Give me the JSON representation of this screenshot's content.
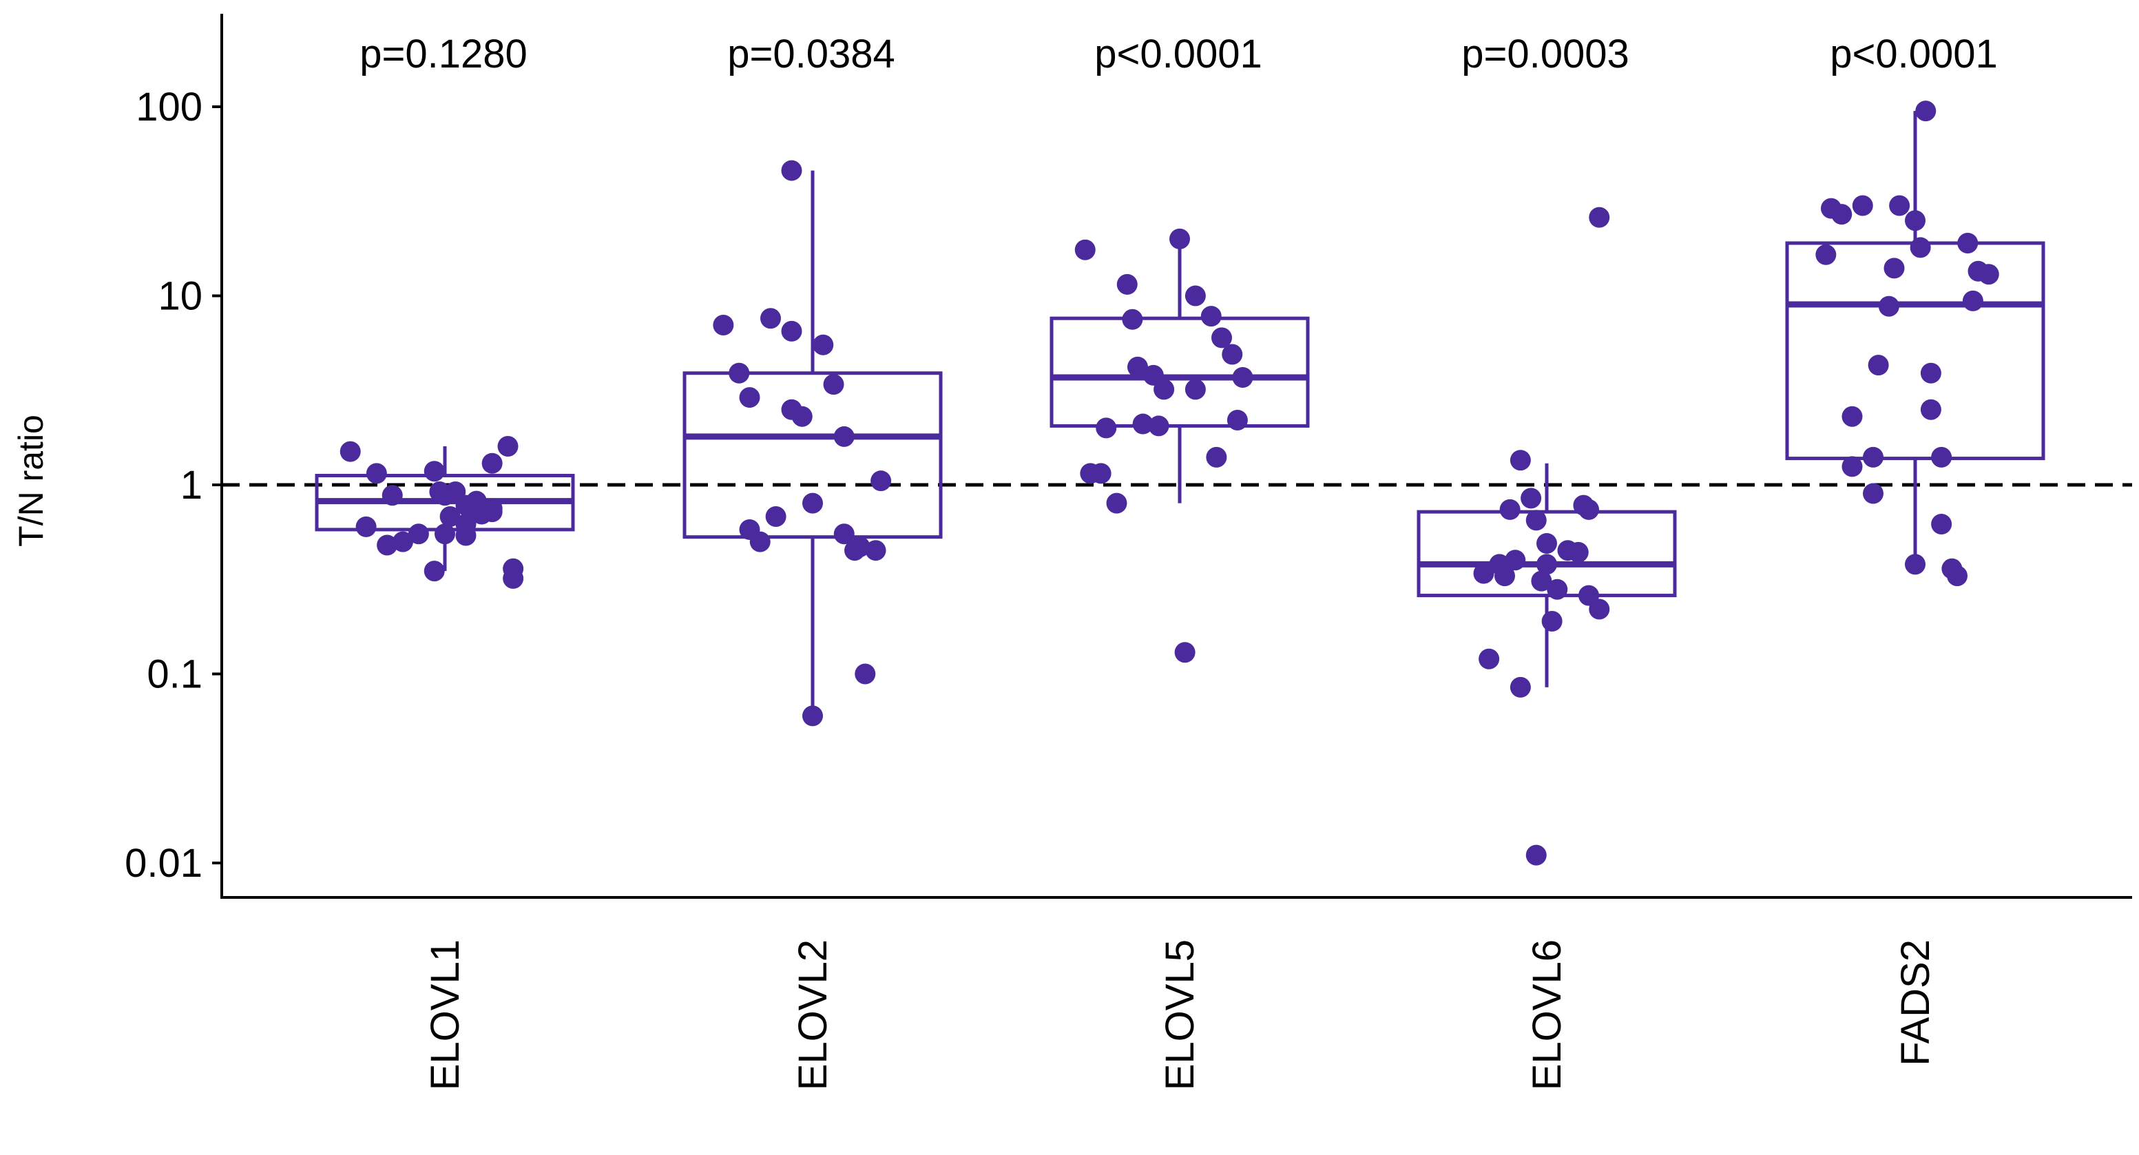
{
  "chart_data": {
    "type": "box",
    "title": "",
    "xlabel": "",
    "ylabel": "T/N ratio",
    "yscale": "log10",
    "ylim": [
      0.008,
      300
    ],
    "yticks": [
      0.01,
      0.1,
      1,
      10,
      100
    ],
    "ytick_labels": [
      "0.01",
      "0.1",
      "1",
      "10",
      "100"
    ],
    "reference_line": 1,
    "grid": false,
    "legend": "none",
    "color": "#4a2a9c",
    "categories": [
      "ELOVL1",
      "ELOVL2",
      "ELOVL5",
      "ELOVL6",
      "FADS2"
    ],
    "p_values": [
      "p=0.1280",
      "p=0.0384",
      "p<0.0001",
      "p=0.0003",
      "p<0.0001"
    ],
    "boxes": [
      {
        "name": "ELOVL1",
        "q1": 0.58,
        "median": 0.82,
        "q3": 1.12,
        "whisker_low": 0.35,
        "whisker_high": 1.6
      },
      {
        "name": "ELOVL2",
        "q1": 0.53,
        "median": 1.8,
        "q3": 3.9,
        "whisker_low": 0.06,
        "whisker_high": 46
      },
      {
        "name": "ELOVL5",
        "q1": 2.05,
        "median": 3.7,
        "q3": 7.6,
        "whisker_low": 0.8,
        "whisker_high": 19
      },
      {
        "name": "ELOVL6",
        "q1": 0.26,
        "median": 0.38,
        "q3": 0.72,
        "whisker_low": 0.085,
        "whisker_high": 1.3
      },
      {
        "name": "FADS2",
        "q1": 1.38,
        "median": 9.0,
        "q3": 19.0,
        "whisker_low": 0.34,
        "whisker_high": 95
      }
    ],
    "points": [
      {
        "name": "ELOVL1",
        "jitter": [
          -0.36,
          -0.26,
          -0.2,
          -0.3,
          -0.1,
          -0.04,
          0.04,
          0.12,
          0.18,
          0.24,
          -0.22,
          -0.04,
          0.1,
          0.18,
          -0.16,
          0.0,
          0.08,
          0.14,
          0.02,
          0.08,
          0.12,
          0.0,
          0.18,
          0.08,
          -0.02,
          0.26,
          0.26
        ],
        "values": [
          1.5,
          1.15,
          0.88,
          0.6,
          0.55,
          0.35,
          0.92,
          0.82,
          1.3,
          1.6,
          0.48,
          1.18,
          0.72,
          0.75,
          0.5,
          0.55,
          0.62,
          0.7,
          0.68,
          0.54,
          0.8,
          0.88,
          0.72,
          0.78,
          0.92,
          0.36,
          0.32
        ]
      },
      {
        "name": "ELOVL2",
        "jitter": [
          -0.34,
          -0.28,
          -0.24,
          -0.24,
          -0.2,
          -0.16,
          -0.08,
          -0.04,
          -0.08,
          0.0,
          0.04,
          0.08,
          0.12,
          0.12,
          0.16,
          0.18,
          0.2,
          0.26,
          0.24,
          0.0,
          -0.14,
          -0.08
        ],
        "values": [
          7.0,
          3.9,
          2.9,
          0.58,
          0.5,
          7.6,
          2.5,
          2.3,
          6.5,
          0.8,
          5.5,
          3.4,
          1.8,
          0.55,
          0.45,
          0.47,
          0.1,
          1.05,
          0.45,
          0.06,
          0.68,
          46
        ]
      },
      {
        "name": "ELOVL5",
        "jitter": [
          -0.36,
          -0.3,
          -0.24,
          -0.2,
          -0.18,
          -0.16,
          -0.14,
          -0.1,
          -0.08,
          -0.06,
          0.0,
          0.06,
          0.06,
          0.12,
          0.14,
          0.16,
          0.2,
          0.22,
          0.24,
          0.02,
          -0.34,
          -0.28
        ],
        "values": [
          17.5,
          1.15,
          0.8,
          11.5,
          7.5,
          4.2,
          2.1,
          3.8,
          2.05,
          3.2,
          20,
          10,
          3.2,
          7.8,
          1.4,
          6.0,
          4.9,
          2.2,
          3.7,
          0.13,
          1.15,
          2.0
        ]
      },
      {
        "name": "ELOVL6",
        "jitter": [
          -0.22,
          -0.24,
          -0.18,
          -0.14,
          -0.12,
          -0.1,
          -0.06,
          -0.04,
          0.0,
          -0.02,
          0.0,
          0.04,
          0.08,
          0.12,
          0.14,
          0.16,
          0.16,
          0.2,
          0.02,
          -0.1,
          -0.04,
          -0.16,
          0.2
        ],
        "values": [
          0.12,
          0.34,
          0.38,
          0.74,
          0.4,
          1.35,
          0.85,
          0.65,
          0.38,
          0.31,
          0.49,
          0.28,
          0.45,
          0.44,
          0.78,
          0.74,
          0.26,
          0.22,
          0.19,
          0.085,
          0.011,
          0.33,
          26
        ]
      },
      {
        "name": "FADS2",
        "jitter": [
          -0.34,
          -0.32,
          -0.28,
          -0.24,
          -0.24,
          -0.16,
          -0.14,
          -0.1,
          -0.08,
          -0.06,
          0.0,
          0.02,
          0.06,
          0.1,
          0.1,
          0.14,
          0.16,
          0.2,
          0.22,
          0.24,
          0.06,
          0.04,
          -0.2,
          -0.16,
          0.0,
          0.28
        ],
        "values": [
          16.5,
          29,
          27,
          2.3,
          1.25,
          0.9,
          4.3,
          8.8,
          14,
          30,
          25,
          18,
          3.9,
          1.4,
          0.62,
          0.36,
          0.33,
          19,
          9.4,
          13.5,
          2.5,
          95,
          30,
          1.4,
          0.38,
          13
        ]
      }
    ]
  }
}
